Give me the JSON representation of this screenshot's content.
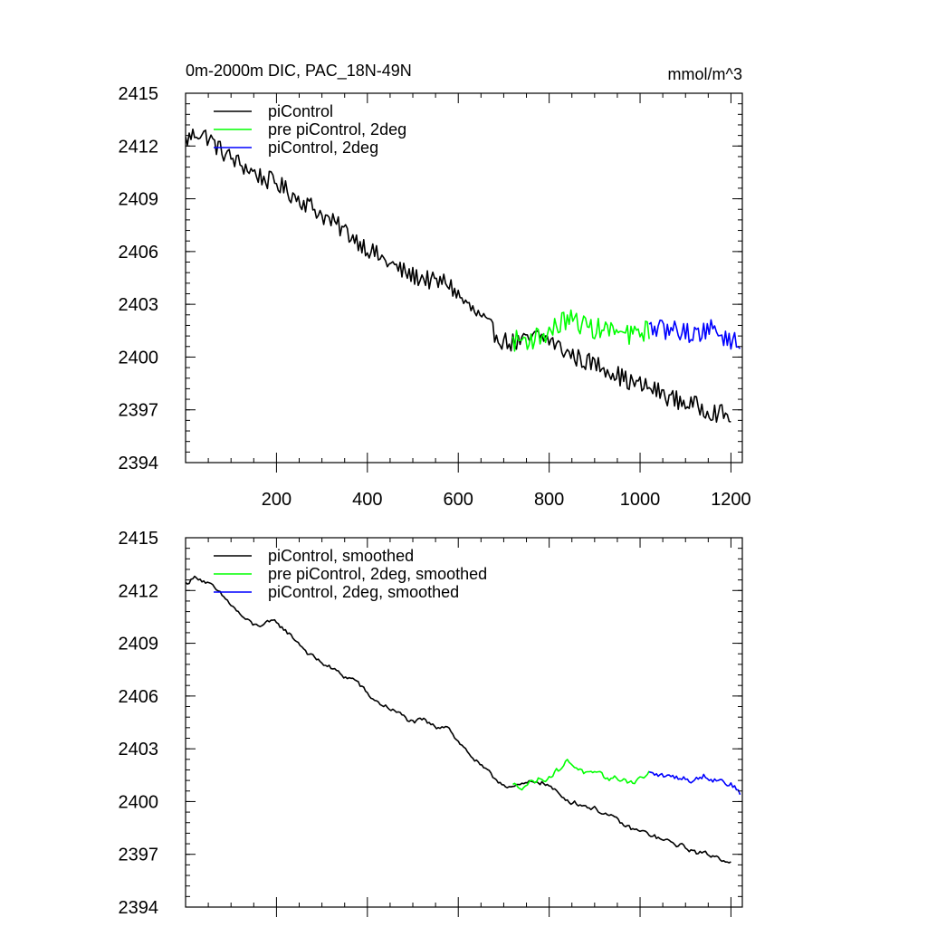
{
  "figure": {
    "title": "0m-2000m DIC, PAC_18N-49N",
    "units": "mmol/m^3"
  },
  "colors": {
    "piControl": "#000000",
    "pre_piControl_2deg": "#00ff00",
    "piControl_2deg": "#0000ff"
  },
  "chart_data": [
    {
      "type": "line",
      "xlim": [
        0,
        1225
      ],
      "ylim": [
        2394,
        2415
      ],
      "xticks": [
        200,
        400,
        600,
        800,
        1000,
        1200
      ],
      "xtick_labels": [
        "200",
        "400",
        "600",
        "800",
        "1000",
        "1200"
      ],
      "yticks": [
        2394,
        2397,
        2400,
        2403,
        2406,
        2409,
        2412,
        2415
      ],
      "ytick_labels": [
        "2394",
        "2397",
        "2400",
        "2403",
        "2406",
        "2409",
        "2412",
        "2415"
      ],
      "legend": "top-left",
      "series": [
        {
          "name": "piControl",
          "color": "#000000",
          "smoothed": false,
          "x": [
            0,
            25,
            50,
            75,
            100,
            125,
            150,
            175,
            200,
            225,
            250,
            275,
            300,
            325,
            350,
            375,
            400,
            425,
            450,
            475,
            500,
            525,
            550,
            575,
            600,
            625,
            650,
            675,
            700,
            725,
            750,
            775,
            800,
            825,
            850,
            875,
            900,
            925,
            950,
            975,
            1000,
            1025,
            1050,
            1075,
            1100,
            1125,
            1150,
            1175,
            1200
          ],
          "values": [
            2412.3,
            2412.8,
            2412.5,
            2411.8,
            2411.3,
            2410.9,
            2410.5,
            2410.1,
            2409.9,
            2409.4,
            2409.0,
            2408.6,
            2408.1,
            2407.6,
            2407.2,
            2406.7,
            2406.2,
            2405.7,
            2405.3,
            2404.9,
            2404.6,
            2404.5,
            2404.2,
            2404.3,
            2403.5,
            2402.8,
            2402.2,
            2401.5,
            2400.9,
            2400.8,
            2400.9,
            2401.2,
            2401.0,
            2400.5,
            2400.1,
            2399.8,
            2399.6,
            2399.4,
            2399.0,
            2398.6,
            2398.4,
            2398.2,
            2397.9,
            2397.6,
            2397.4,
            2397.2,
            2397.0,
            2396.8,
            2396.6
          ],
          "noise": 0.55
        },
        {
          "name": "pre piControl, 2deg",
          "color": "#00ff00",
          "smoothed": false,
          "x": [
            720,
            740,
            760,
            780,
            800,
            820,
            840,
            860,
            880,
            900,
            920,
            940,
            960,
            980,
            1000,
            1020
          ],
          "values": [
            2400.9,
            2401.0,
            2401.0,
            2401.2,
            2401.4,
            2401.8,
            2402.2,
            2402.0,
            2401.8,
            2401.6,
            2401.6,
            2401.5,
            2401.3,
            2401.2,
            2401.4,
            2401.6
          ],
          "noise": 0.6
        },
        {
          "name": "piControl, 2deg",
          "color": "#0000ff",
          "smoothed": false,
          "x": [
            1020,
            1040,
            1060,
            1080,
            1100,
            1120,
            1140,
            1160,
            1180,
            1200,
            1220
          ],
          "values": [
            2401.6,
            2401.6,
            2401.5,
            2401.6,
            2401.4,
            2401.3,
            2401.5,
            2401.6,
            2401.2,
            2401.0,
            2400.6
          ],
          "noise": 0.55
        }
      ]
    },
    {
      "type": "line",
      "xlim": [
        0,
        1225
      ],
      "ylim": [
        2394,
        2415
      ],
      "xticks": [
        200,
        400,
        600,
        800,
        1000,
        1200
      ],
      "xtick_labels": [],
      "yticks": [
        2394,
        2397,
        2400,
        2403,
        2406,
        2409,
        2412,
        2415
      ],
      "ytick_labels": [
        "2394",
        "2397",
        "2400",
        "2403",
        "2406",
        "2409",
        "2412",
        "2415"
      ],
      "legend": "top-left",
      "series": [
        {
          "name": "piControl, smoothed",
          "color": "#000000",
          "smoothed": true,
          "x": [
            0,
            25,
            50,
            75,
            100,
            125,
            150,
            175,
            200,
            225,
            250,
            275,
            300,
            325,
            350,
            375,
            400,
            425,
            450,
            475,
            500,
            525,
            550,
            575,
            600,
            625,
            650,
            675,
            700,
            725,
            750,
            775,
            800,
            825,
            850,
            875,
            900,
            925,
            950,
            975,
            1000,
            1025,
            1050,
            1075,
            1100,
            1125,
            1150,
            1175,
            1200
          ],
          "values": [
            2412.4,
            2412.8,
            2412.4,
            2411.8,
            2411.2,
            2410.5,
            2410.0,
            2410.1,
            2410.2,
            2409.6,
            2409.0,
            2408.3,
            2407.9,
            2407.5,
            2407.1,
            2406.9,
            2406.1,
            2405.6,
            2405.3,
            2404.9,
            2404.5,
            2404.6,
            2404.2,
            2404.4,
            2403.4,
            2402.7,
            2402.0,
            2401.4,
            2401.0,
            2400.8,
            2401.0,
            2401.2,
            2400.9,
            2400.3,
            2400.0,
            2399.8,
            2399.6,
            2399.3,
            2398.9,
            2398.5,
            2398.3,
            2398.1,
            2397.8,
            2397.6,
            2397.4,
            2397.1,
            2397.0,
            2396.8,
            2396.6
          ],
          "noise": 0.25
        },
        {
          "name": "pre piControl, 2deg, smoothed",
          "color": "#00ff00",
          "smoothed": true,
          "x": [
            720,
            740,
            760,
            780,
            800,
            820,
            840,
            860,
            880,
            900,
            920,
            940,
            960,
            980,
            1000,
            1020
          ],
          "values": [
            2400.9,
            2400.9,
            2401.1,
            2401.3,
            2401.4,
            2401.8,
            2402.3,
            2402.0,
            2401.6,
            2401.5,
            2401.4,
            2401.3,
            2401.3,
            2401.1,
            2401.3,
            2401.6
          ],
          "noise": 0.3
        },
        {
          "name": "piControl, 2deg, smoothed",
          "color": "#0000ff",
          "smoothed": true,
          "x": [
            1020,
            1040,
            1060,
            1080,
            1100,
            1120,
            1140,
            1160,
            1180,
            1200,
            1220
          ],
          "values": [
            2401.6,
            2401.5,
            2401.4,
            2401.4,
            2401.3,
            2401.2,
            2401.5,
            2401.3,
            2401.2,
            2401.0,
            2400.5
          ],
          "noise": 0.3
        }
      ]
    }
  ]
}
